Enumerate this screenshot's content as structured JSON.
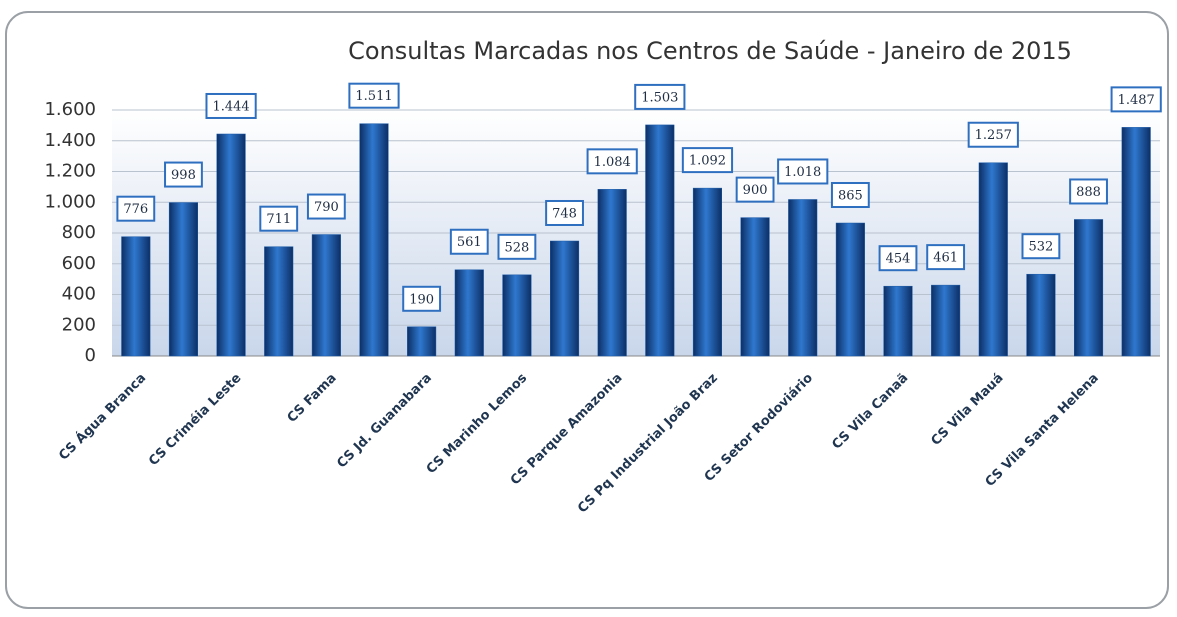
{
  "chart_data": {
    "type": "bar",
    "title": "Consultas Marcadas nos Centros de Saúde - Janeiro de 2015",
    "categories": [
      "CS Água Branca",
      null,
      "CS Criméia Leste",
      null,
      "CS Fama",
      null,
      "CS Jd. Guanabara",
      null,
      "CS Marinho Lemos",
      null,
      "CS Parque Amazonia",
      null,
      "CS Pq Industrial João Braz",
      null,
      "CS Setor Rodoviário",
      null,
      "CS Vila Canaã",
      null,
      "CS Vila Mauá",
      null,
      "CS Vila Santa Helena",
      null
    ],
    "values": [
      776,
      998,
      1444,
      711,
      790,
      1511,
      190,
      561,
      528,
      748,
      1084,
      1503,
      1092,
      900,
      1018,
      865,
      454,
      461,
      1257,
      532,
      888,
      1487
    ],
    "value_labels": [
      "776",
      "998",
      "1.444",
      "711",
      "790",
      "1.511",
      "190",
      "561",
      "528",
      "748",
      "1.084",
      "1.503",
      "1.092",
      "900",
      "1.018",
      "865",
      "454",
      "461",
      "1.257",
      "532",
      "888",
      "1.487"
    ],
    "color": "#1a5aa8",
    "ylim": [
      0,
      1600
    ],
    "yticks": [
      0,
      200,
      400,
      600,
      800,
      {
        "value": 1000,
        "label": "1.000"
      },
      {
        "value": 1200,
        "label": "1.200"
      },
      {
        "value": 1400,
        "label": "1.400"
      },
      {
        "value": 1600,
        "label": "1.600"
      }
    ],
    "grid": true
  }
}
